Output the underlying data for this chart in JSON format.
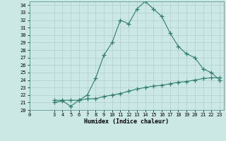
{
  "xlabel": "Humidex (Indice chaleur)",
  "x_ticks": [
    0,
    3,
    4,
    5,
    6,
    7,
    8,
    9,
    10,
    11,
    12,
    13,
    14,
    15,
    16,
    17,
    18,
    19,
    20,
    21,
    22,
    23
  ],
  "xlim": [
    0,
    23.5
  ],
  "ylim": [
    20,
    34.5
  ],
  "y_ticks": [
    20,
    21,
    22,
    23,
    24,
    25,
    26,
    27,
    28,
    29,
    30,
    31,
    32,
    33,
    34
  ],
  "line1_x": [
    3,
    4,
    5,
    6,
    7,
    8,
    9,
    10,
    11,
    12,
    13,
    14,
    15,
    16,
    17,
    18,
    19,
    20,
    21,
    22,
    23
  ],
  "line1_y": [
    21.0,
    21.2,
    20.5,
    21.3,
    22.0,
    24.2,
    27.3,
    29.0,
    32.0,
    31.5,
    33.5,
    34.5,
    33.5,
    32.5,
    30.3,
    28.5,
    27.5,
    27.0,
    25.5,
    25.0,
    24.0
  ],
  "line2_x": [
    3,
    4,
    5,
    6,
    7,
    8,
    9,
    10,
    11,
    12,
    13,
    14,
    15,
    16,
    17,
    18,
    19,
    20,
    21,
    22,
    23
  ],
  "line2_y": [
    21.3,
    21.3,
    21.3,
    21.3,
    21.5,
    21.5,
    21.8,
    22.0,
    22.2,
    22.5,
    22.8,
    23.0,
    23.2,
    23.3,
    23.5,
    23.7,
    23.8,
    24.0,
    24.2,
    24.3,
    24.3
  ],
  "line_color": "#2e7d6e",
  "bg_color": "#cce8e4",
  "grid_color": "#b0cfcc",
  "grid_minor_color": "#c8e2df"
}
